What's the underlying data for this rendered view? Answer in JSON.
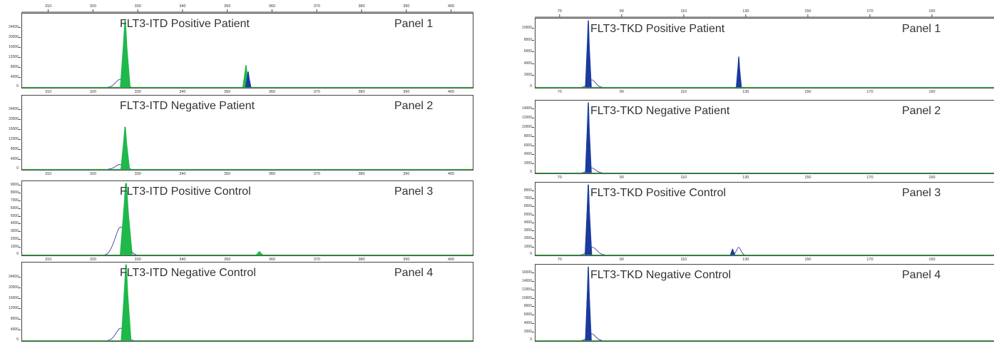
{
  "chart_data": [
    {
      "type": "line",
      "figure": "left",
      "x_ticks": [
        310,
        320,
        330,
        340,
        350,
        360,
        370,
        380,
        390,
        400
      ],
      "xlim": [
        304,
        405
      ],
      "colors": {
        "fill": "#1fb84a",
        "outline": "#2b2b9c",
        "baseline": "#3ab54a"
      },
      "panels": [
        {
          "title": "FLT3-ITD Positive Patient",
          "tag": "Panel 1",
          "yticks": [
            4000,
            8000,
            12000,
            16000,
            20000,
            24000
          ],
          "ylim": [
            0,
            28000
          ],
          "peaks": [
            {
              "x": 327.0,
              "height": 26000,
              "width": 0.9,
              "color": "green"
            },
            {
              "x": 354.0,
              "height": 8500,
              "width": 0.6,
              "color": "green"
            },
            {
              "x": 354.5,
              "height": 6000,
              "width": 0.5,
              "color": "blue"
            }
          ],
          "outline_peaks": [
            {
              "x": 325.8,
              "height": 3000,
              "width": 0.8
            }
          ]
        },
        {
          "title": "FLT3-ITD Negative Patient",
          "tag": "Panel 2",
          "yticks": [
            4000,
            8000,
            12000,
            16000,
            20000,
            24000
          ],
          "ylim": [
            0,
            28000
          ],
          "peaks": [
            {
              "x": 327.0,
              "height": 16500,
              "width": 0.8,
              "color": "green"
            }
          ],
          "outline_peaks": [
            {
              "x": 325.8,
              "height": 1800,
              "width": 0.8
            }
          ]
        },
        {
          "title": "FLT3-ITD Positive Control",
          "tag": "Panel 3",
          "yticks": [
            1000,
            2000,
            3000,
            4000,
            5000,
            6000,
            7000,
            8000,
            9000
          ],
          "ylim": [
            0,
            9000
          ],
          "peaks": [
            {
              "x": 327.2,
              "height": 9000,
              "width": 1.1,
              "color": "green"
            },
            {
              "x": 357.0,
              "height": 400,
              "width": 0.6,
              "color": "green"
            }
          ],
          "outline_peaks": [
            {
              "x": 326.0,
              "height": 3500,
              "width": 1.1
            }
          ]
        },
        {
          "title": "FLT3-ITD Negative Control",
          "tag": "Panel 4",
          "yticks": [
            4000,
            8000,
            12000,
            16000,
            20000,
            24000
          ],
          "ylim": [
            0,
            28000
          ],
          "peaks": [
            {
              "x": 327.2,
              "height": 28000,
              "width": 0.9,
              "color": "green"
            }
          ],
          "outline_peaks": [
            {
              "x": 326.0,
              "height": 4500,
              "width": 0.9
            }
          ]
        }
      ]
    },
    {
      "type": "line",
      "figure": "right",
      "x_ticks": [
        70,
        90,
        110,
        130,
        150,
        170,
        190
      ],
      "xlim": [
        62,
        210
      ],
      "colors": {
        "fill": "#1a3a9e",
        "outline": "#2b2b9c",
        "baseline": "#3ab54a"
      },
      "panels": [
        {
          "title": "FLT3-TKD Positive Patient",
          "tag": "Panel 1",
          "yticks": [
            2000,
            4000,
            6000,
            8000,
            10000
          ],
          "ylim": [
            0,
            11000
          ],
          "peaks": [
            {
              "x": 79.0,
              "height": 11000,
              "width": 0.8,
              "color": "blue"
            },
            {
              "x": 127.5,
              "height": 5000,
              "width": 0.7,
              "color": "blue"
            }
          ],
          "outline_peaks": [
            {
              "x": 80.2,
              "height": 1200,
              "width": 1.0
            }
          ]
        },
        {
          "title": "FLT3-TKD Negative Patient",
          "tag": "Panel 2",
          "yticks": [
            2000,
            4000,
            6000,
            8000,
            10000,
            12000,
            14000
          ],
          "ylim": [
            0,
            15000
          ],
          "peaks": [
            {
              "x": 79.0,
              "height": 15000,
              "width": 0.8,
              "color": "blue"
            }
          ],
          "outline_peaks": [
            {
              "x": 80.2,
              "height": 1000,
              "width": 1.0
            }
          ]
        },
        {
          "title": "FLT3-TKD Positive Control",
          "tag": "Panel 3",
          "yticks": [
            1000,
            2000,
            3000,
            4000,
            5000,
            6000,
            7000,
            8000
          ],
          "ylim": [
            0,
            8500
          ],
          "peaks": [
            {
              "x": 79.0,
              "height": 8500,
              "width": 0.9,
              "color": "blue"
            },
            {
              "x": 125.5,
              "height": 700,
              "width": 0.6,
              "color": "blue"
            }
          ],
          "outline_peaks": [
            {
              "x": 80.4,
              "height": 900,
              "width": 1.2
            },
            {
              "x": 127.5,
              "height": 900,
              "width": 0.6
            }
          ]
        },
        {
          "title": "FLT3-TKD Negative Control",
          "tag": "Panel 4",
          "yticks": [
            2000,
            4000,
            6000,
            8000,
            10000,
            12000,
            14000,
            16000
          ],
          "ylim": [
            0,
            17000
          ],
          "peaks": [
            {
              "x": 79.0,
              "height": 17000,
              "width": 0.8,
              "color": "blue"
            }
          ],
          "outline_peaks": [
            {
              "x": 80.2,
              "height": 1500,
              "width": 1.0
            }
          ]
        }
      ]
    }
  ]
}
